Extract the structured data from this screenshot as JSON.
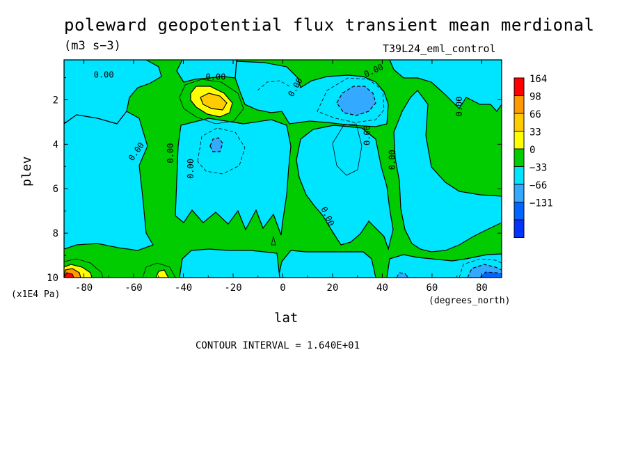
{
  "chart_data": {
    "type": "heatmap",
    "title": "poleward geopotential flux transient mean merdional",
    "units": "(m3 s−3)",
    "run_id": "T39L24_eml_control",
    "xlabel": "lat",
    "x_units": "(degrees_north)",
    "ylabel": "plev",
    "y_units": "(x1E4 Pa)",
    "xlim": [
      -88,
      88
    ],
    "ylim": [
      10,
      0.2
    ],
    "x_ticks": [
      -80,
      -60,
      -40,
      -20,
      0,
      20,
      40,
      60,
      80
    ],
    "x_tick_labels": [
      "-80",
      "-60",
      "-40",
      "-20",
      "0",
      "20",
      "40",
      "60",
      "80"
    ],
    "y_ticks": [
      2,
      4,
      6,
      8,
      10
    ],
    "y_tick_labels": [
      "2",
      "4",
      "6",
      "8",
      "10"
    ],
    "contour_interval_text": "CONTOUR INTERVAL = 1.640E+01",
    "contour_labels": [
      "0.00",
      "0.00",
      "0.00",
      "0.00",
      "0.00",
      "0.00",
      "0.00",
      "0.00",
      "0.00",
      "0.00",
      "0.00"
    ],
    "colorbar": {
      "labels": [
        "164",
        "98",
        "66",
        "33",
        "0",
        "−33",
        "−66",
        "−131"
      ],
      "colors": [
        "#ff0000",
        "#ff9900",
        "#ffcc00",
        "#ffff00",
        "#00cc00",
        "#00e5ff",
        "#33aaff",
        "#0066ff",
        "#0033ff"
      ]
    },
    "features": [
      {
        "type": "max",
        "lon": -30,
        "plev": 2.0,
        "value": 66
      },
      {
        "type": "max",
        "lon": -86,
        "plev": 9.9,
        "value": 98
      },
      {
        "type": "min",
        "lon": 30,
        "plev": 2.1,
        "value": -66
      },
      {
        "type": "min",
        "lon": -29,
        "plev": 4.0,
        "value": -33
      },
      {
        "type": "min",
        "lon": 82,
        "plev": 9.8,
        "value": -66
      }
    ]
  }
}
